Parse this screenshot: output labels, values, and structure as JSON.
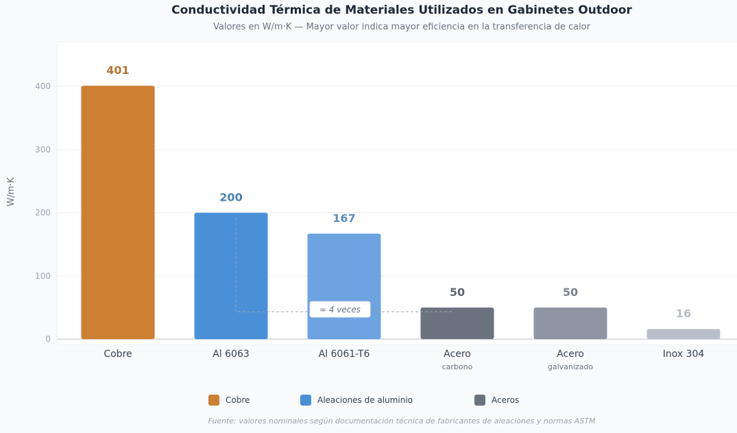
{
  "chart_data": {
    "type": "bar",
    "title": "Conductividad Térmica de Materiales Utilizados en Gabinetes Outdoor",
    "subtitle": "Valores en W/m·K — Mayor valor indica mayor eficiencia en la transferencia de calor",
    "ylabel": "W/m·K",
    "ylim": [
      0,
      400
    ],
    "yticks": [
      "0",
      "100",
      "200",
      "300",
      "400"
    ],
    "grid": true,
    "categories": [
      {
        "label": "Cobre",
        "sublabel": ""
      },
      {
        "label": "Al 6063",
        "sublabel": ""
      },
      {
        "label": "Al 6061-T6",
        "sublabel": ""
      },
      {
        "label": "Acero",
        "sublabel": "carbono"
      },
      {
        "label": "Acero",
        "sublabel": "galvanizado"
      },
      {
        "label": "Inox 304",
        "sublabel": ""
      }
    ],
    "values": [
      401,
      200,
      167,
      50,
      50,
      16
    ],
    "bar_colors": [
      "#CD7F32",
      "#4A90D9",
      "#6CA3E0",
      "#6B7280",
      "#8E96A4",
      "#B8BFCA"
    ],
    "value_label_colors": [
      "#B87333",
      "#4A80B8",
      "#5A8CC4",
      "#5F6470",
      "#7A828F",
      "#B5BCC7"
    ],
    "annotation": {
      "text": "≈ 4 veces",
      "from": "Al 6063",
      "to": "Acero carbono"
    },
    "legend": {
      "placement": "bottom",
      "items": [
        {
          "label": "Cobre",
          "color": "#CD7F32"
        },
        {
          "label": "Aleaciones de aluminio",
          "color": "#4A90D9"
        },
        {
          "label": "Aceros",
          "color": "#6B7280"
        }
      ]
    },
    "source": "Fuente: valores nominales según documentación técnica de fabricantes de aleaciones y normas ASTM"
  }
}
